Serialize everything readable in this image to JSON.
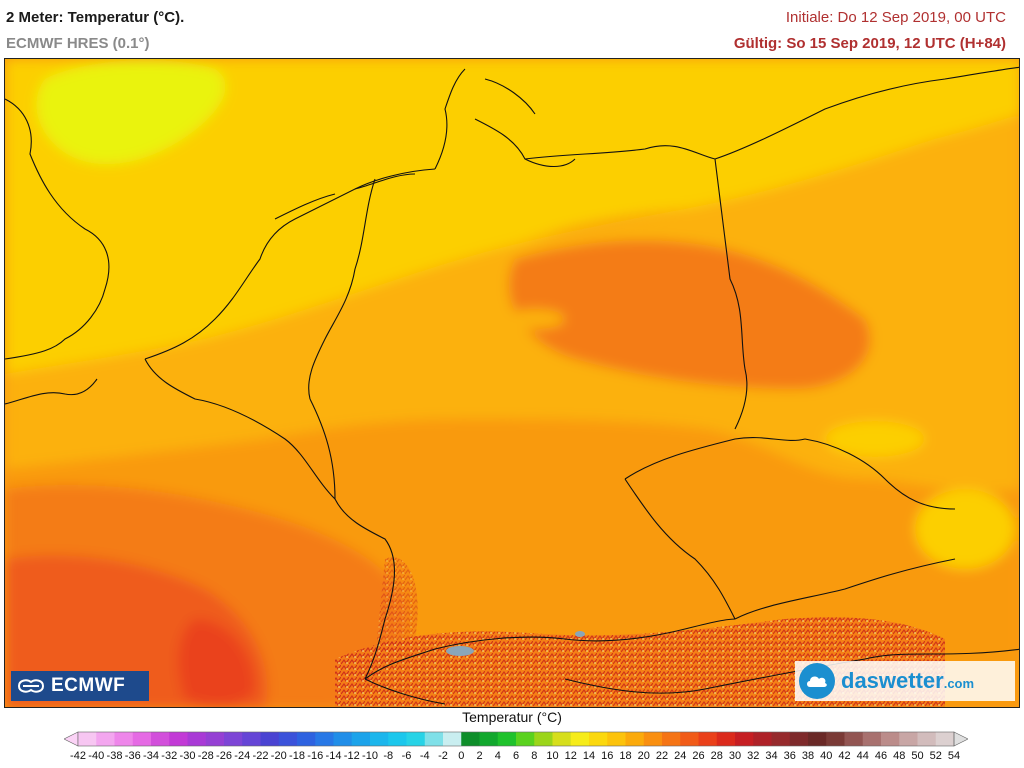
{
  "header": {
    "title": "2 Meter: Temperatur (°C).",
    "subtitle": "ECMWF HRES (0.1°)",
    "init": "Initiale: Do 12 Sep 2019, 00 UTC",
    "valid": "Gültig: So 15 Sep 2019, 12 UTC (H+84)"
  },
  "logos": {
    "left": "ECMWF",
    "right_main": "daswetter",
    "right_suffix": ".com"
  },
  "legend": {
    "title": "Temperatur (°C)",
    "values": [
      -42,
      -40,
      -38,
      -36,
      -34,
      -32,
      -30,
      -28,
      -26,
      -24,
      -22,
      -20,
      -18,
      -16,
      -14,
      -12,
      -10,
      -8,
      -6,
      -4,
      -2,
      0,
      2,
      4,
      6,
      8,
      10,
      12,
      14,
      16,
      18,
      20,
      22,
      24,
      26,
      28,
      30,
      32,
      34,
      36,
      38,
      40,
      42,
      44,
      46,
      48,
      50,
      52,
      54
    ],
    "colors": [
      "#f7c6f2",
      "#f3a6ef",
      "#ee86ea",
      "#e56ae4",
      "#d24fdb",
      "#c23ad6",
      "#a93ad6",
      "#9540d4",
      "#7d45d6",
      "#6545d6",
      "#4a43d2",
      "#3b52da",
      "#2e62e0",
      "#2878e6",
      "#218ee8",
      "#1ca3ea",
      "#1cb6ec",
      "#1cc7ec",
      "#27d3e6",
      "#7fe0e8",
      "#c9eef0",
      "#0e8e2a",
      "#12a82e",
      "#1fc22c",
      "#5ad21e",
      "#9bd51a",
      "#d6de1c",
      "#f6ec1a",
      "#fbd80e",
      "#fcc30c",
      "#fbaa0b",
      "#f98f10",
      "#f57415",
      "#f15b18",
      "#ea401a",
      "#db2a1c",
      "#c61e23",
      "#ae2128",
      "#962a2c",
      "#7e2a2b",
      "#6a2927",
      "#7a3a36",
      "#925552",
      "#a8716f",
      "#bb8c8a",
      "#c8a6a5",
      "#d2bcbc",
      "#dcd0d0"
    ],
    "arrow_left_color": "#fbd3f6",
    "arrow_right_color": "#dfdfdf"
  },
  "map_colors": {
    "cold_yellow": "#eaf30b",
    "yellow": "#fccf06",
    "light_orange": "#fcb10c",
    "orange": "#f99a10",
    "dark_orange": "#f47c17",
    "red_orange": "#ef5c1a",
    "red": "#ea421a",
    "border": "#111111"
  }
}
